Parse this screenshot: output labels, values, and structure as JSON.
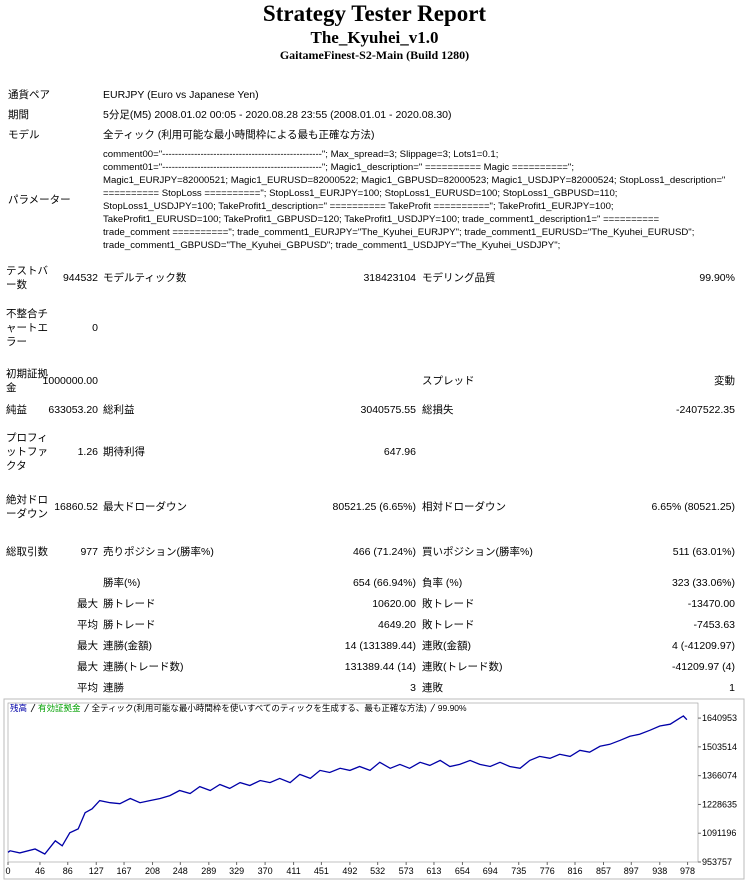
{
  "header": {
    "title": "Strategy Tester Report",
    "expert": "The_Kyuhei_v1.0",
    "server": "GaitameFinest-S2-Main (Build 1280)"
  },
  "settings": [
    {
      "label": "通貨ペア",
      "value": "EURJPY (Euro vs Japanese Yen)"
    },
    {
      "label": "期間",
      "value": "5分足(M5) 2008.01.02 00:05 - 2020.08.28 23:55 (2008.01.01 - 2020.08.30)"
    },
    {
      "label": "モデル",
      "value": "全ティック (利用可能な最小時間枠による最も正確な方法)"
    },
    {
      "label": "パラメーター",
      "lines": [
        "comment00=\"--------------------------------------------------\"; Max_spread=3; Slippage=3; Lots1=0.1;",
        "comment01=\"--------------------------------------------------\"; Magic1_description=\" ========== Magic ==========\";",
        "Magic1_EURJPY=82000521; Magic1_EURUSD=82000522; Magic1_GBPUSD=82000523; Magic1_USDJPY=82000524; StopLoss1_description=\"",
        "========== StopLoss ==========\"; StopLoss1_EURJPY=100; StopLoss1_EURUSD=100; StopLoss1_GBPUSD=110;",
        "StopLoss1_USDJPY=100; TakeProfit1_description=\" ========== TakeProfit ==========\"; TakeProfit1_EURJPY=100;",
        "TakeProfit1_EURUSD=100; TakeProfit1_GBPUSD=120; TakeProfit1_USDJPY=100; trade_comment1_description1=\" ==========",
        "trade_comment ==========\"; trade_comment1_EURJPY=\"The_Kyuhei_EURJPY\"; trade_comment1_EURUSD=\"The_Kyuhei_EURUSD\";",
        "trade_comment1_GBPUSD=\"The_Kyuhei_GBPUSD\"; trade_comment1_USDJPY=\"The_Kyuhei_USDJPY\";"
      ]
    }
  ],
  "results": {
    "rows": [
      [
        "テストバー数",
        "944532",
        "モデルティック数",
        "318423104",
        "モデリング品質",
        "99.90%"
      ],
      [
        "不整合チャートエラー",
        "0",
        null,
        null,
        null,
        null
      ],
      [
        "初期証拠金",
        "1000000.00",
        null,
        null,
        "スプレッド",
        "変動"
      ],
      [
        "純益",
        "633053.20",
        "総利益",
        "3040575.55",
        "総損失",
        "-2407522.35"
      ],
      [
        "プロフィットファクタ",
        "1.26",
        "期待利得",
        "647.96",
        null,
        null
      ],
      [
        "絶対ドローダウン",
        "16860.52",
        "最大ドローダウン",
        "80521.25 (6.65%)",
        "相対ドローダウン",
        "6.65% (80521.25)"
      ],
      [
        "総取引数",
        "977",
        "売りポジション(勝率%)",
        "466 (71.24%)",
        "買いポジション(勝率%)",
        "511 (63.01%)"
      ],
      [
        null,
        null,
        "勝率(%)",
        "654 (66.94%)",
        "負率 (%)",
        "323 (33.06%)"
      ],
      [
        null,
        "最大",
        "勝トレード",
        "10620.00",
        "敗トレード",
        "-13470.00"
      ],
      [
        null,
        "平均",
        "勝トレード",
        "4649.20",
        "敗トレード",
        "-7453.63"
      ],
      [
        null,
        "最大",
        "連勝(金額)",
        "14 (131389.44)",
        "連敗(金額)",
        "4 (-41209.97)"
      ],
      [
        null,
        "最大",
        "連勝(トレード数)",
        "131389.44 (14)",
        "連敗(トレード数)",
        "-41209.97 (4)"
      ],
      [
        null,
        "平均",
        "連勝",
        "3",
        "連敗",
        "1"
      ]
    ]
  },
  "chart_data": {
    "type": "line",
    "series": [
      {
        "name": "残高",
        "color": "#0000a8",
        "values": [
          1000000,
          1007000,
          997000,
          1016000,
          992000,
          1055000,
          1031000,
          1093000,
          1112000,
          1189000,
          1208000,
          1247000,
          1237000,
          1232000,
          1257000,
          1237000,
          1247000,
          1257000,
          1271000,
          1295000,
          1281000,
          1314000,
          1295000,
          1324000,
          1305000,
          1333000,
          1319000,
          1343000,
          1333000,
          1353000,
          1333000,
          1372000,
          1353000,
          1391000,
          1381000,
          1401000,
          1391000,
          1410000,
          1391000,
          1430000,
          1401000,
          1420000,
          1401000,
          1430000,
          1415000,
          1439000,
          1410000,
          1420000,
          1439000,
          1420000,
          1410000,
          1430000,
          1410000,
          1401000,
          1439000,
          1458000,
          1449000,
          1468000,
          1458000,
          1487000,
          1478000,
          1506000,
          1516000,
          1535000,
          1554000,
          1564000,
          1583000,
          1603000,
          1612000,
          1641000,
          1651000,
          1633053
        ]
      }
    ],
    "x": [
      0,
      3,
      17,
      39,
      53,
      68,
      78,
      89,
      101,
      111,
      121,
      132,
      147,
      161,
      176,
      190,
      204,
      219,
      233,
      247,
      262,
      276,
      291,
      305,
      319,
      334,
      348,
      363,
      377,
      391,
      406,
      420,
      435,
      449,
      463,
      478,
      492,
      506,
      521,
      535,
      550,
      564,
      578,
      593,
      607,
      622,
      636,
      650,
      665,
      679,
      694,
      708,
      722,
      737,
      751,
      765,
      780,
      794,
      809,
      823,
      837,
      852,
      866,
      881,
      895,
      909,
      924,
      938,
      953,
      967,
      972,
      977
    ],
    "equity": {
      "name": "有効証拠金",
      "color": "#00a000"
    },
    "model": "全ティック(利用可能な最小時間枠を使いすべてのティックを生成する、最も正確な方法)",
    "quality": "99.90%",
    "xlim": [
      0,
      993
    ],
    "xticks": [
      0,
      46,
      86,
      127,
      167,
      208,
      248,
      289,
      329,
      370,
      411,
      451,
      492,
      532,
      573,
      613,
      654,
      694,
      735,
      776,
      816,
      857,
      897,
      938,
      978
    ],
    "ylim": [
      953757,
      1713000
    ],
    "yticks": [
      953757,
      1091196,
      1228635,
      1366074,
      1503514,
      1640953
    ]
  }
}
